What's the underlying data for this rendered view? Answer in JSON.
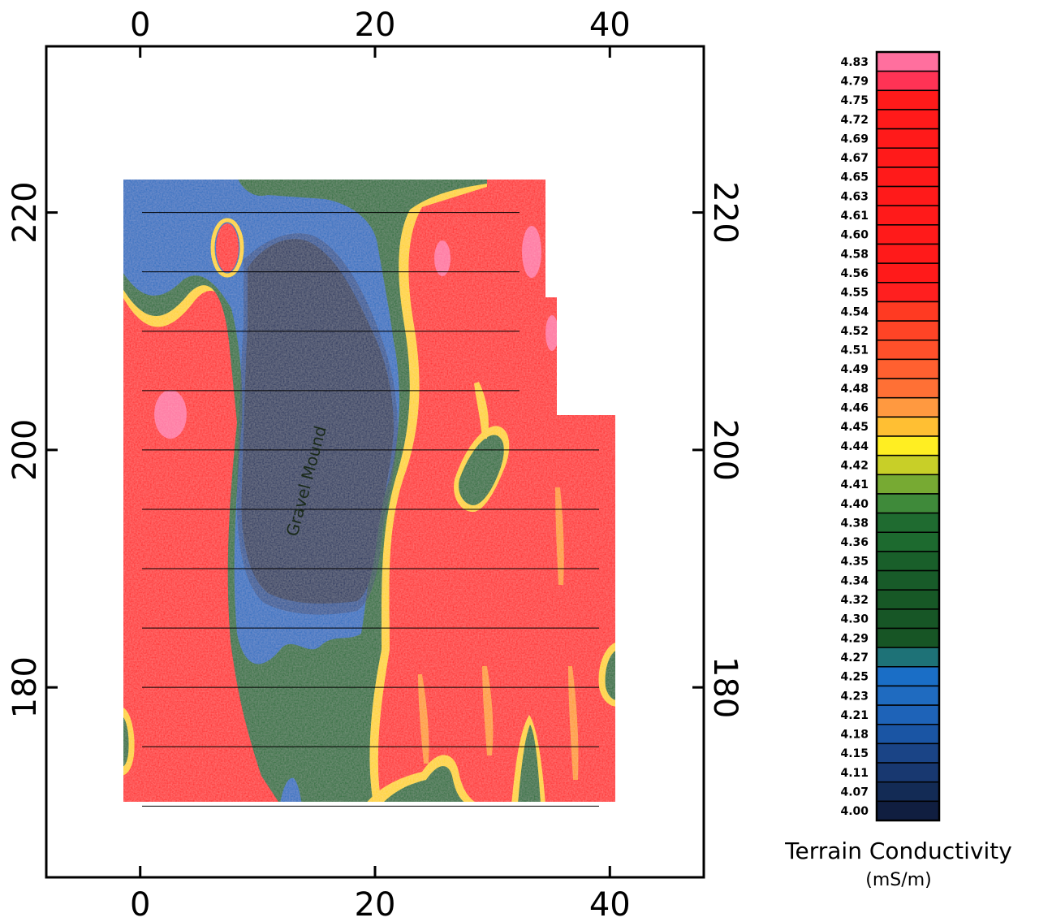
{
  "chart_data": {
    "type": "heatmap",
    "title": "",
    "xlim": [
      -8,
      48
    ],
    "ylim": [
      164,
      234
    ],
    "x_ticks": [
      0,
      20,
      40
    ],
    "y_ticks": [
      180,
      200,
      220
    ],
    "grid": false,
    "survey_lines_y": [
      170,
      175,
      180,
      185,
      190,
      195,
      200,
      205,
      210,
      215,
      220
    ],
    "annotations": [
      {
        "text": "Gravel Mound",
        "x": 14,
        "y": 197,
        "rotation": -75
      }
    ],
    "colorbar": {
      "title": "Terrain Conductivity",
      "unit": "(mS/m)",
      "levels": [
        "4.83",
        "4.79",
        "4.75",
        "4.72",
        "4.69",
        "4.67",
        "4.65",
        "4.63",
        "4.61",
        "4.60",
        "4.58",
        "4.56",
        "4.55",
        "4.54",
        "4.52",
        "4.51",
        "4.49",
        "4.48",
        "4.46",
        "4.45",
        "4.44",
        "4.42",
        "4.41",
        "4.40",
        "4.38",
        "4.36",
        "4.35",
        "4.34",
        "4.32",
        "4.30",
        "4.29",
        "4.27",
        "4.25",
        "4.23",
        "4.21",
        "4.18",
        "4.15",
        "4.11",
        "4.07",
        "4.00"
      ],
      "colors": [
        "#ff6f9e",
        "#ff3355",
        "#ff1a1a",
        "#ff1a1a",
        "#ff1a1a",
        "#ff1a1a",
        "#ff1a1a",
        "#ff1a1a",
        "#ff1a1a",
        "#ff1a1a",
        "#ff1a1a",
        "#ff1a1a",
        "#ff1f1f",
        "#ff3a22",
        "#ff4426",
        "#ff502a",
        "#ff6030",
        "#ff7035",
        "#ff9940",
        "#ffbf33",
        "#ffee22",
        "#c8cf28",
        "#77aa33",
        "#3f8a3a",
        "#1f6b30",
        "#1d6a2f",
        "#195f2a",
        "#185b29",
        "#175826",
        "#175626",
        "#175525",
        "#1e7277",
        "#1a6ec6",
        "#1f6bc0",
        "#1e63b8",
        "#1a55a4",
        "#1a4486",
        "#183870",
        "#132b55",
        "#101e40"
      ]
    },
    "regions": [
      {
        "class": "red-background",
        "value": 4.65
      },
      {
        "class": "gravel-mound-low",
        "value": 4.0
      }
    ]
  }
}
